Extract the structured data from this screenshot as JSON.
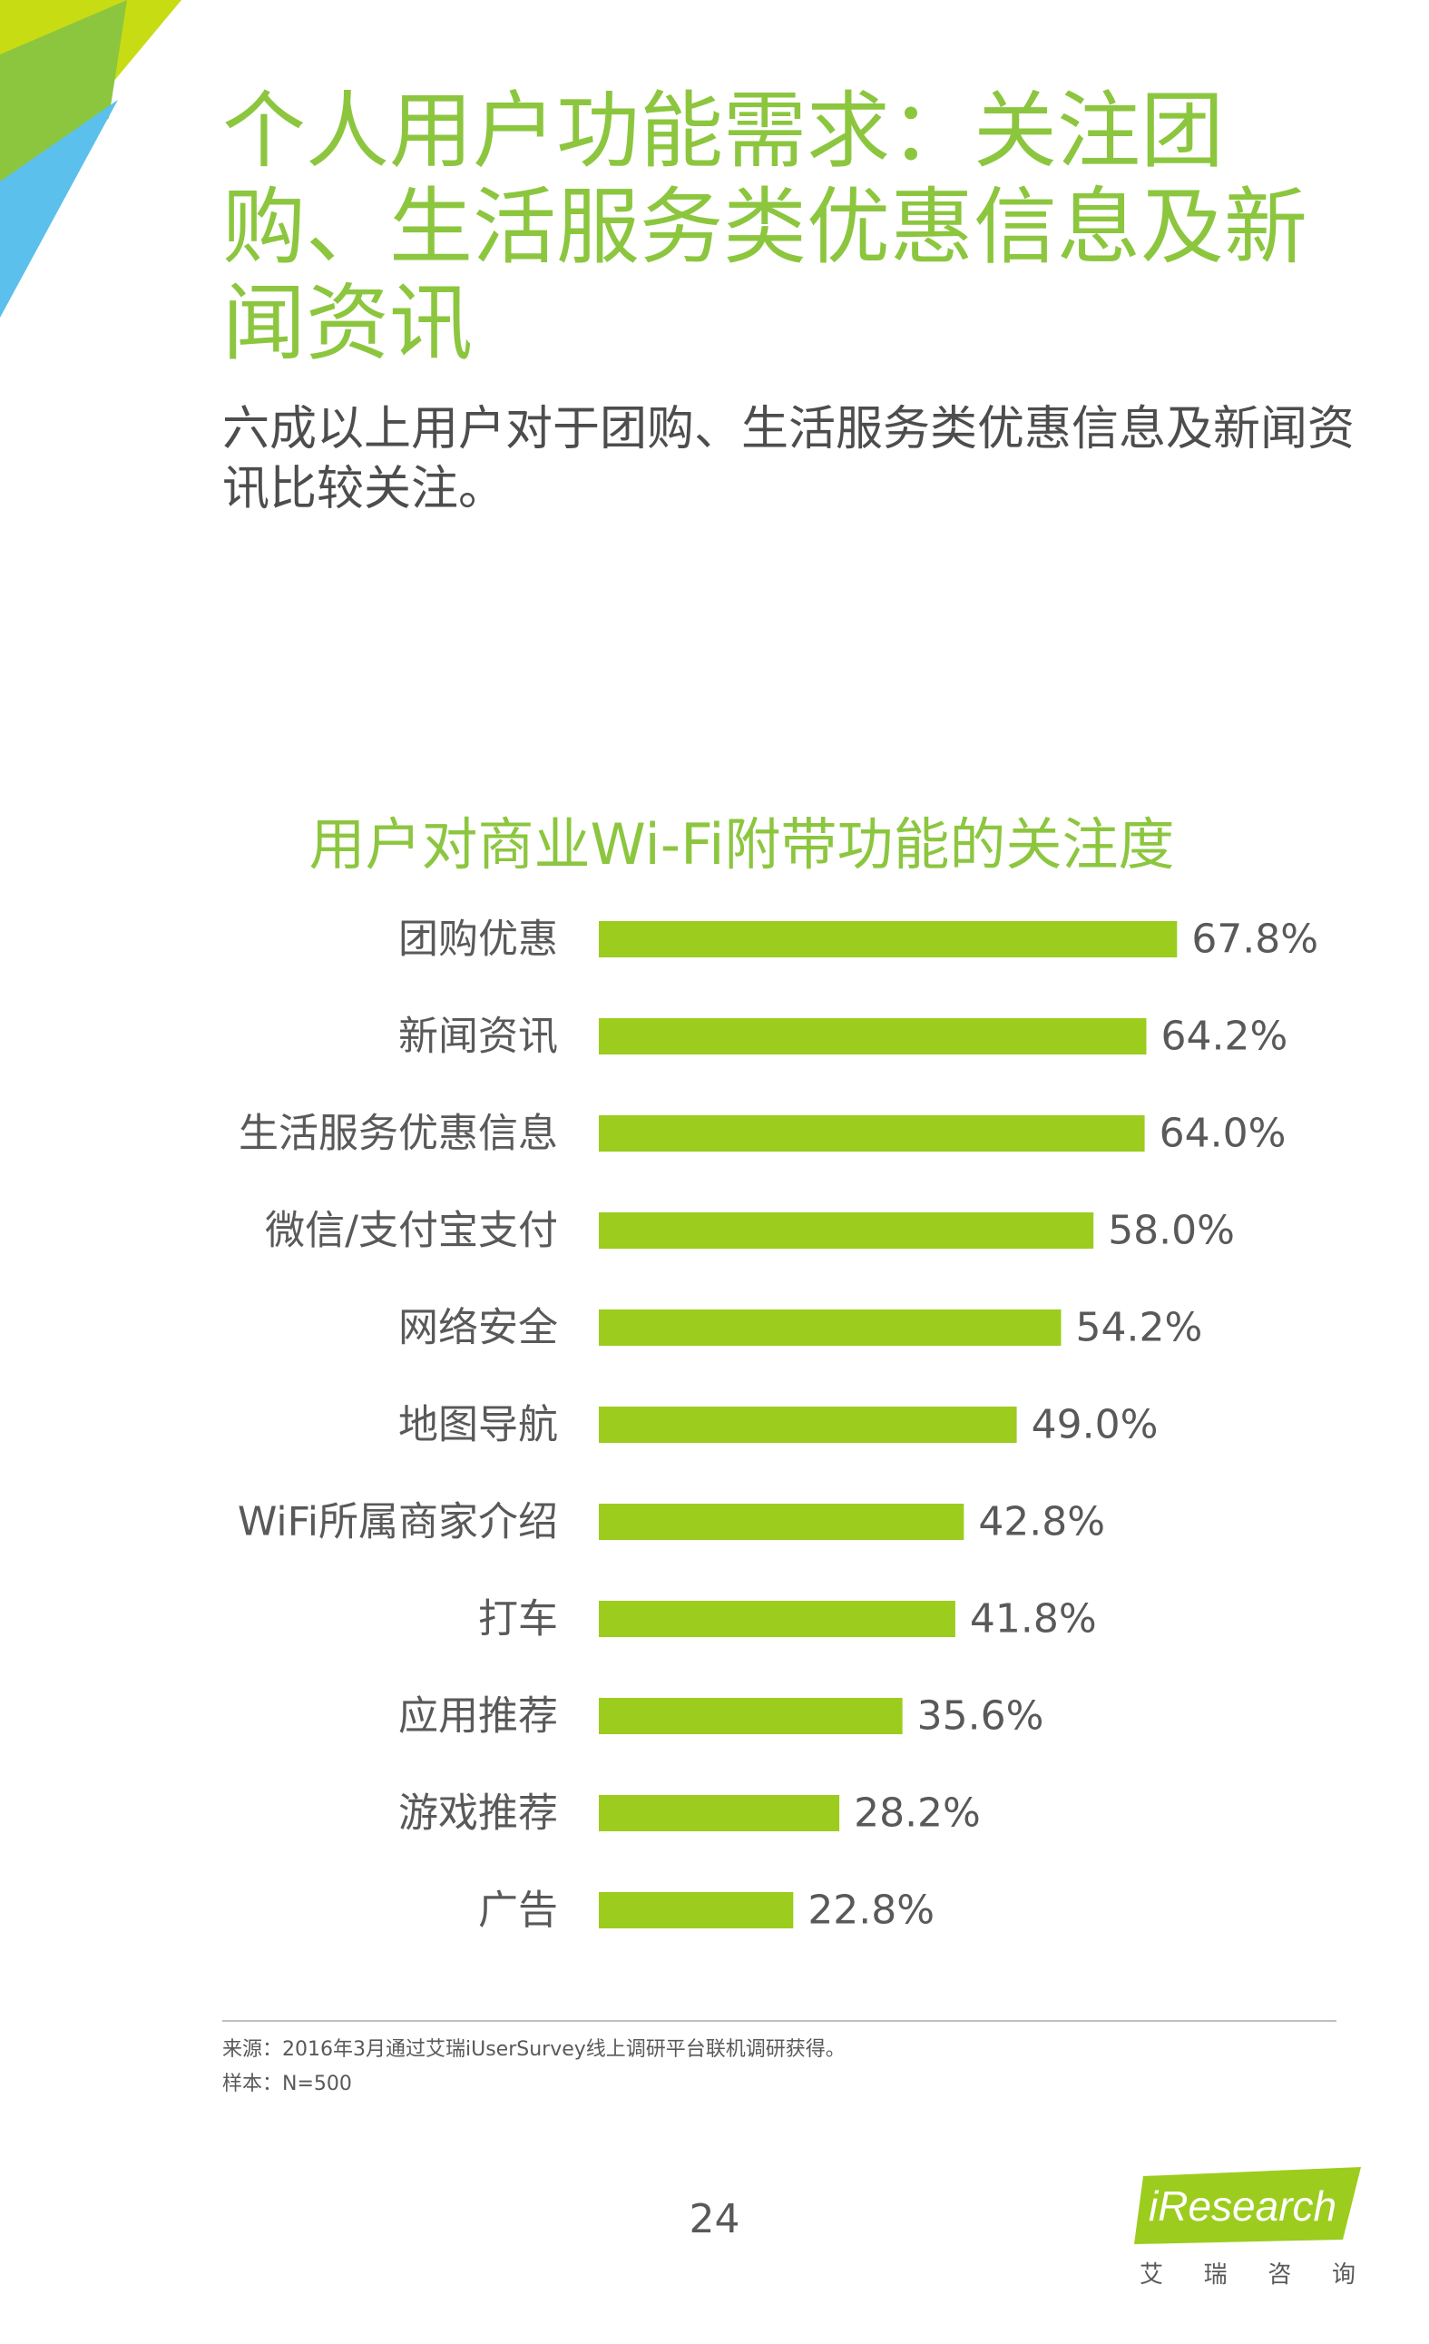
{
  "header": {
    "title": "个人用户功能需求：关注团购、生活服务类优惠信息及新闻资讯",
    "subtitle": "六成以上用户对于团购、生活服务类优惠信息及新闻资讯比较关注。"
  },
  "colors": {
    "accent_green": "#8cc63f",
    "bar_green": "#9ccc1e",
    "corner_lime": "#c8dc14",
    "corner_blue": "#5bc0eb",
    "text_gray": "#595959"
  },
  "chart_data": {
    "type": "bar",
    "orientation": "horizontal",
    "title": "用户对商业Wi-Fi附带功能的关注度",
    "categories": [
      "团购优惠",
      "新闻资讯",
      "生活服务优惠信息",
      "微信/支付宝支付",
      "网络安全",
      "地图导航",
      "WiFi所属商家介绍",
      "打车",
      "应用推荐",
      "游戏推荐",
      "广告"
    ],
    "values": [
      67.8,
      64.2,
      64.0,
      58.0,
      54.2,
      49.0,
      42.8,
      41.8,
      35.6,
      28.2,
      22.8
    ],
    "value_labels": [
      "67.8%",
      "64.2%",
      "64.0%",
      "58.0%",
      "54.2%",
      "49.0%",
      "42.8%",
      "41.8%",
      "35.6%",
      "28.2%",
      "22.8%"
    ],
    "unit": "%",
    "xlim": [
      0,
      100
    ],
    "grid": false,
    "legend": "none"
  },
  "footer": {
    "source": "来源：2016年3月通过艾瑞iUserSurvey线上调研平台联机调研获得。",
    "sample": "样本：N=500",
    "page_number": "24",
    "logo_text": "iResearch",
    "logo_cn": [
      "艾",
      "瑞",
      "咨",
      "询"
    ]
  }
}
